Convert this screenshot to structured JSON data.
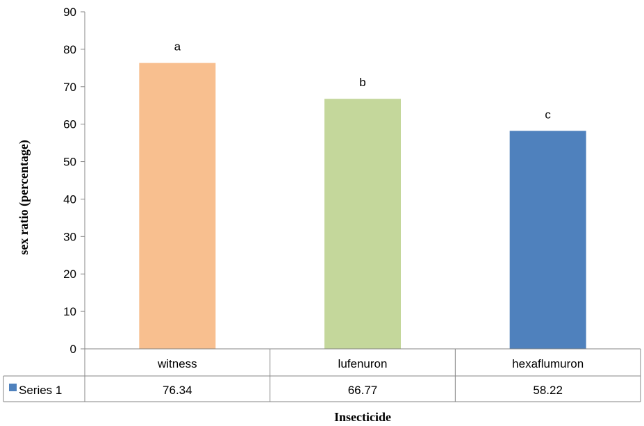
{
  "chart_data": {
    "type": "bar",
    "categories": [
      "witness",
      "lufenuron",
      "hexaflumuron"
    ],
    "series": [
      {
        "name": "Series 1",
        "values": [
          76.34,
          66.77,
          58.22
        ],
        "color": "#f8bf8f",
        "legend_color": "#4f81bd",
        "bar_colors": [
          "#f8bf8f",
          "#c4d79b",
          "#4f81bd"
        ]
      }
    ],
    "bar_labels": [
      "a",
      "b",
      "c"
    ],
    "data_table_values": [
      "76.34",
      "66.77",
      "58.22"
    ],
    "title": "",
    "xlabel": "Insecticide",
    "ylabel": "sex ratio (percentage)",
    "ylim": [
      0,
      90
    ],
    "yticks": [
      0,
      10,
      20,
      30,
      40,
      50,
      60,
      70,
      80,
      90
    ],
    "grid": false,
    "legend": "data-table"
  }
}
